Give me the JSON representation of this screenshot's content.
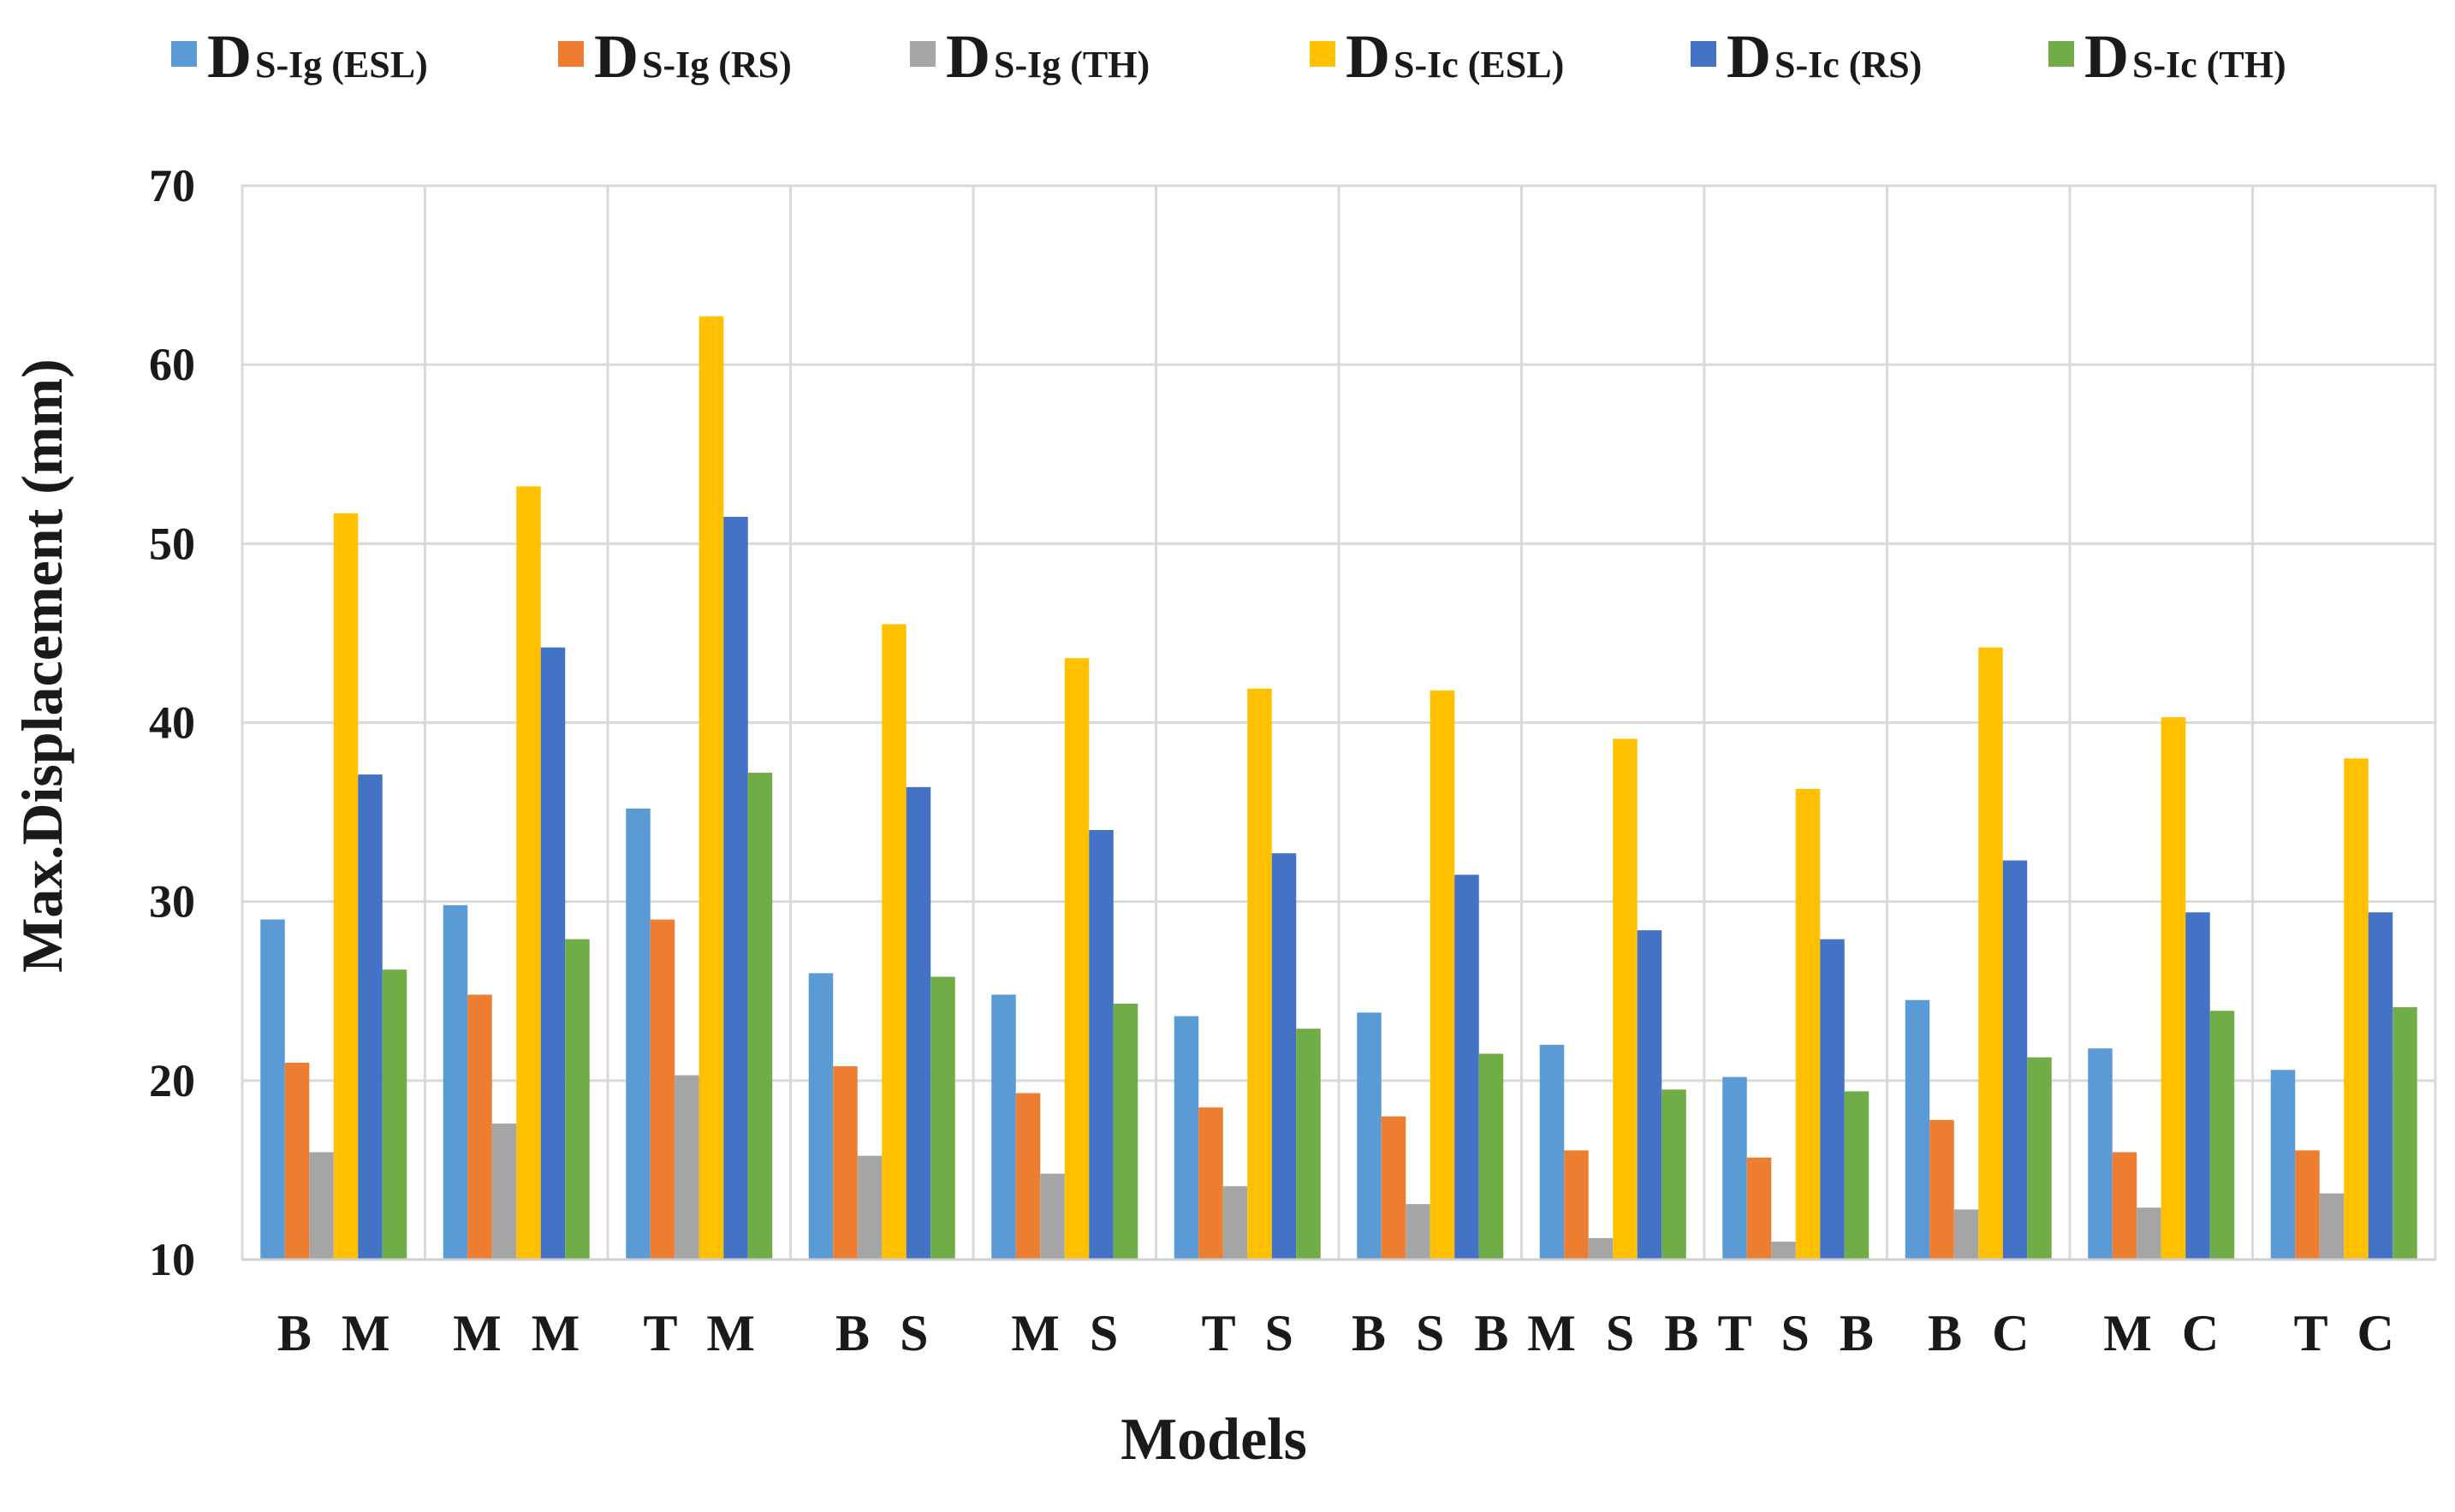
{
  "chart_data": {
    "type": "bar",
    "title": "",
    "xlabel": "Models",
    "ylabel": "Max.Displacement  (mm)",
    "ylim": [
      10,
      70
    ],
    "yticks": [
      "10",
      "20",
      "30",
      "40",
      "50",
      "60",
      "70"
    ],
    "grid": true,
    "legend_position": "top",
    "categories": [
      "B M",
      "M M",
      "T M",
      "B S",
      "M S",
      "T S",
      "B S B",
      "M S B",
      "T S B",
      "B C",
      "M C",
      "T C"
    ],
    "series": [
      {
        "name": "D",
        "sub": "S-Ig (ESL)",
        "color": "#5B9BD5",
        "values": [
          29.0,
          29.8,
          35.2,
          26.0,
          24.8,
          23.6,
          23.8,
          22.0,
          20.2,
          24.5,
          21.8,
          20.6
        ]
      },
      {
        "name": "D",
        "sub": "S-Ig (RS)",
        "color": "#ED7D31",
        "values": [
          21.0,
          24.8,
          29.0,
          20.8,
          19.3,
          18.5,
          18.0,
          16.1,
          15.7,
          17.8,
          16.0,
          16.1
        ]
      },
      {
        "name": "D",
        "sub": "S-Ig (TH)",
        "color": "#A5A5A5",
        "values": [
          16.0,
          17.6,
          20.3,
          15.8,
          14.8,
          14.1,
          13.1,
          11.2,
          11.0,
          12.8,
          12.9,
          13.7
        ]
      },
      {
        "name": "D",
        "sub": "S-Ic (ESL)",
        "color": "#FFC000",
        "values": [
          51.7,
          53.2,
          62.7,
          45.5,
          43.6,
          41.9,
          41.8,
          39.1,
          36.3,
          44.2,
          40.3,
          38.0
        ]
      },
      {
        "name": "D",
        "sub": "S-Ic (RS)",
        "color": "#4472C4",
        "values": [
          37.1,
          44.2,
          51.5,
          36.4,
          34.0,
          32.7,
          31.5,
          28.4,
          27.9,
          32.3,
          29.4,
          29.4
        ]
      },
      {
        "name": "D",
        "sub": "S-Ic (TH)",
        "color": "#70AD47",
        "values": [
          26.2,
          27.9,
          37.2,
          25.8,
          24.3,
          22.9,
          21.5,
          19.5,
          19.4,
          21.3,
          23.9,
          24.1
        ]
      }
    ]
  }
}
